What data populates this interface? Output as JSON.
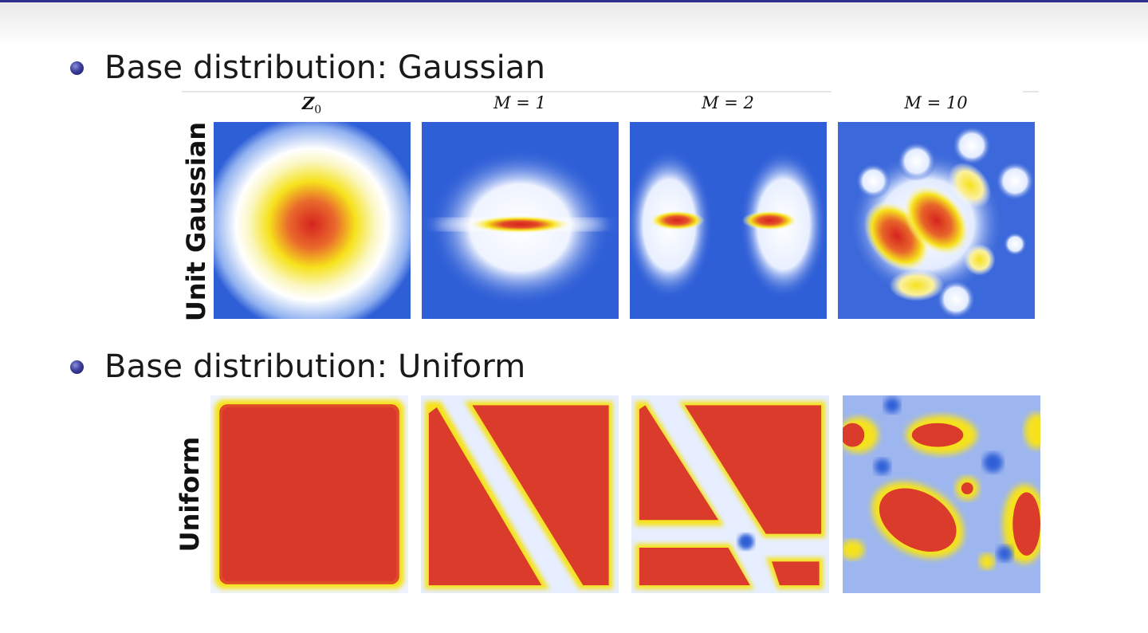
{
  "slide": {
    "bullet_gaussian": "Base distribution:  Gaussian",
    "bullet_uniform": "Base distribution:  Uniform"
  },
  "figure": {
    "columns": [
      {
        "sym": "Z",
        "sub": "0"
      },
      {
        "sym": "M = 1",
        "sub": ""
      },
      {
        "sym": "M = 2",
        "sub": ""
      },
      {
        "sym": "M = 10",
        "sub": ""
      }
    ],
    "rows": [
      {
        "label": "Unit Gaussian",
        "panels": [
          "density-z0-gaussian",
          "density-m1-gaussian",
          "density-m2-gaussian",
          "density-m10-gaussian"
        ]
      },
      {
        "label": "Uniform",
        "panels": [
          "density-z0-uniform",
          "density-m1-uniform",
          "density-m2-uniform",
          "density-m10-uniform"
        ]
      }
    ],
    "colormap": {
      "low": "#2f5fd7",
      "mid": "#ffffff",
      "upper": "#f6e21c",
      "high": "#d5231f"
    }
  }
}
